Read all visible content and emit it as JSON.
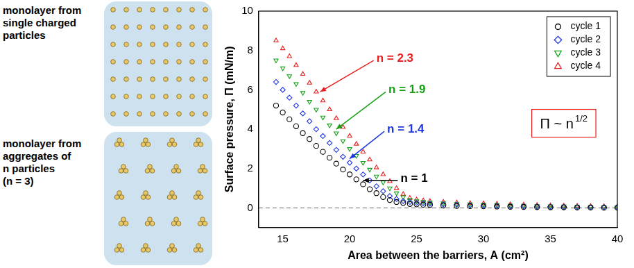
{
  "diagram": {
    "panels": [
      {
        "label_lines": [
          "monolayer from",
          "single charged",
          "particles"
        ]
      },
      {
        "label_lines": [
          "monolayer from",
          "aggregates of",
          "n particles",
          "(n = 3)"
        ]
      }
    ]
  },
  "chart_data": {
    "type": "scatter",
    "x_label": "Area between the barriers, A (cm²)",
    "y_label": "Surface pressure, Π (mN/m)",
    "xlim": [
      13.2,
      40
    ],
    "ylim": [
      -1,
      10
    ],
    "xticks": [
      15,
      20,
      25,
      30,
      35,
      40
    ],
    "yticks": [
      0,
      2,
      4,
      6,
      8,
      10
    ],
    "grid": false,
    "legend": "upper right",
    "x": [
      14.5,
      15,
      15.5,
      16,
      16.5,
      17,
      17.5,
      18,
      18.5,
      19,
      19.5,
      20,
      20.5,
      21,
      21.5,
      22,
      22.5,
      23,
      23.5,
      24,
      24.5,
      25,
      25.5,
      26,
      27,
      28,
      29,
      30,
      31,
      32,
      33,
      34,
      35,
      36,
      37,
      38,
      39,
      40
    ],
    "series": [
      {
        "name": "cycle 1",
        "color": "#000000",
        "marker": "circle",
        "values": [
          5.2,
          4.85,
          4.5,
          4.15,
          3.8,
          3.5,
          3.15,
          2.85,
          2.55,
          2.25,
          1.95,
          1.7,
          1.45,
          1.2,
          0.95,
          0.75,
          0.55,
          0.4,
          0.3,
          0.25,
          0.2,
          0.18,
          0.16,
          0.15,
          0.12,
          0.1,
          0.09,
          0.08,
          0.07,
          0.06,
          0.05,
          0.04,
          0.03,
          0.03,
          0.02,
          0.02,
          0.01,
          0.01
        ]
      },
      {
        "name": "cycle 2",
        "color": "#1f35e0",
        "marker": "diamond",
        "values": [
          6.4,
          6.0,
          5.6,
          5.2,
          4.8,
          4.4,
          4.0,
          3.65,
          3.3,
          2.95,
          2.6,
          2.3,
          2.0,
          1.7,
          1.4,
          1.1,
          0.85,
          0.6,
          0.45,
          0.35,
          0.3,
          0.26,
          0.23,
          0.21,
          0.18,
          0.16,
          0.14,
          0.12,
          0.1,
          0.09,
          0.08,
          0.07,
          0.06,
          0.05,
          0.04,
          0.03,
          0.03,
          0.02
        ]
      },
      {
        "name": "cycle 3",
        "color": "#16a016",
        "marker": "triangle-down",
        "values": [
          7.5,
          7.1,
          6.7,
          6.3,
          5.85,
          5.4,
          5.0,
          4.6,
          4.2,
          3.8,
          3.4,
          3.0,
          2.65,
          2.3,
          1.95,
          1.6,
          1.3,
          1.0,
          0.75,
          0.55,
          0.42,
          0.35,
          0.31,
          0.28,
          0.24,
          0.21,
          0.19,
          0.17,
          0.15,
          0.13,
          0.12,
          0.1,
          0.09,
          0.08,
          0.07,
          0.06,
          0.05,
          0.04
        ]
      },
      {
        "name": "cycle 4",
        "color": "#e8201f",
        "marker": "triangle-up",
        "values": [
          8.5,
          8.1,
          7.7,
          7.25,
          6.8,
          6.35,
          5.9,
          5.45,
          5.0,
          4.55,
          4.1,
          3.65,
          3.25,
          2.85,
          2.45,
          2.05,
          1.7,
          1.35,
          1.0,
          0.7,
          0.5,
          0.42,
          0.37,
          0.34,
          0.3,
          0.27,
          0.24,
          0.22,
          0.2,
          0.18,
          0.16,
          0.14,
          0.12,
          0.11,
          0.1,
          0.09,
          0.08,
          0.07
        ]
      }
    ],
    "annotations": [
      {
        "text": "n = 2.3",
        "color": "#e8201f",
        "x": 22.0,
        "y": 7.6,
        "arrow_to": [
          17.8,
          5.9
        ]
      },
      {
        "text": "n = 1.9",
        "color": "#16a016",
        "x": 22.9,
        "y": 6.0,
        "arrow_to": [
          19.0,
          4.0
        ]
      },
      {
        "text": "n = 1.4",
        "color": "#1f35e0",
        "x": 22.8,
        "y": 4.0,
        "arrow_to": [
          20.0,
          2.5
        ]
      },
      {
        "text": "n = 1",
        "color": "#000000",
        "x": 23.8,
        "y": 1.5,
        "arrow_to": [
          21.0,
          1.4
        ]
      }
    ],
    "text_box": {
      "text": "Π ~ n",
      "superscript": "1/2",
      "color": "#e8201f",
      "x": 36,
      "y": 4.3
    },
    "reference_line": {
      "y": 0,
      "line_style": "dashed"
    }
  }
}
